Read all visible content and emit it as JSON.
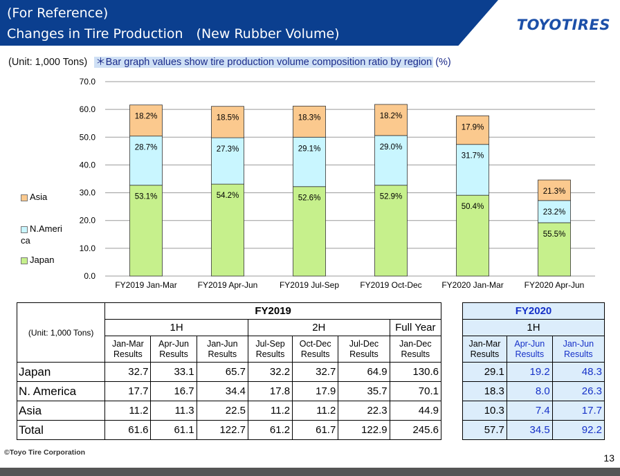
{
  "header": {
    "title_line1": "(For Reference)",
    "title_line2": "Changes in Tire Production　(New Rubber Volume)",
    "logo_text": "TOYOTIRES"
  },
  "subtitle": {
    "unit": "(Unit: 1,000 Tons)",
    "note": "＊Bar graph values show tire production volume composition ratio by region",
    "pct": "(%)"
  },
  "legend": [
    {
      "label": "Asia",
      "color": "#fbc98e"
    },
    {
      "label": "N.Ameri\nca",
      "color": "#c9f6ff"
    },
    {
      "label": "Japan",
      "color": "#c6f08c"
    }
  ],
  "chart_data": {
    "type": "bar",
    "stacked": true,
    "categories": [
      "FY2019 Jan-Mar",
      "FY2019 Apr-Jun",
      "FY2019 Jul-Sep",
      "FY2019 Oct-Dec",
      "FY2020 Jan-Mar",
      "FY2020 Apr-Jun"
    ],
    "series": [
      {
        "name": "Japan",
        "values": [
          32.7,
          33.1,
          32.2,
          32.7,
          29.1,
          19.2
        ],
        "labels": [
          "53.1%",
          "54.2%",
          "52.6%",
          "52.9%",
          "50.4%",
          "55.5%"
        ],
        "color": "#c6f08c"
      },
      {
        "name": "N.America",
        "values": [
          17.7,
          16.7,
          17.8,
          17.9,
          18.3,
          8.0
        ],
        "labels": [
          "28.7%",
          "27.3%",
          "29.1%",
          "29.0%",
          "31.7%",
          "23.2%"
        ],
        "color": "#c9f6ff"
      },
      {
        "name": "Asia",
        "values": [
          11.2,
          11.3,
          11.2,
          11.2,
          10.3,
          7.4
        ],
        "labels": [
          "18.2%",
          "18.5%",
          "18.3%",
          "18.2%",
          "17.9%",
          "21.3%"
        ],
        "color": "#fbc98e"
      }
    ],
    "yticks": [
      "70.0",
      "60.0",
      "50.0",
      "40.0",
      "30.0",
      "20.0",
      "10.0",
      "0.0"
    ],
    "ylim": [
      0,
      70
    ],
    "grid": true,
    "legend_position": "left"
  },
  "table": {
    "unit": "(Unit: 1,000 Tons)",
    "fy2019": {
      "label": "FY2019",
      "h1": "1H",
      "h2": "2H",
      "full": "Full Year",
      "cols": [
        [
          "Jan-Mar",
          "Results"
        ],
        [
          "Apr-Jun",
          "Results"
        ],
        [
          "Jan-Jun",
          "Results"
        ],
        [
          "Jul-Sep",
          "Results"
        ],
        [
          "Oct-Dec",
          "Results"
        ],
        [
          "Jul-Dec",
          "Results"
        ],
        [
          "Jan-Dec",
          "Results"
        ]
      ]
    },
    "fy2020": {
      "label": "FY2020",
      "h1": "1H",
      "cols": [
        [
          "Jan-Mar",
          "Results"
        ],
        [
          "Apr-Jun",
          "Results"
        ],
        [
          "Jan-Jun",
          "Results"
        ]
      ]
    },
    "rows": [
      {
        "label": "Japan",
        "v2019": [
          "32.7",
          "33.1",
          "65.7",
          "32.2",
          "32.7",
          "64.9",
          "130.6"
        ],
        "v2020": [
          "29.1",
          "19.2",
          "48.3"
        ]
      },
      {
        "label": "N. America",
        "v2019": [
          "17.7",
          "16.7",
          "34.4",
          "17.8",
          "17.9",
          "35.7",
          "70.1"
        ],
        "v2020": [
          "18.3",
          "8.0",
          "26.3"
        ]
      },
      {
        "label": "Asia",
        "v2019": [
          "11.2",
          "11.3",
          "22.5",
          "11.2",
          "11.2",
          "22.3",
          "44.9"
        ],
        "v2020": [
          "10.3",
          "7.4",
          "17.7"
        ]
      },
      {
        "label": "Total",
        "v2019": [
          "61.6",
          "61.1",
          "122.7",
          "61.2",
          "61.7",
          "122.9",
          "245.6"
        ],
        "v2020": [
          "57.7",
          "34.5",
          "92.2"
        ]
      }
    ]
  },
  "footer": {
    "copyright": "©Toyo Tire Corporation",
    "page": "13"
  }
}
